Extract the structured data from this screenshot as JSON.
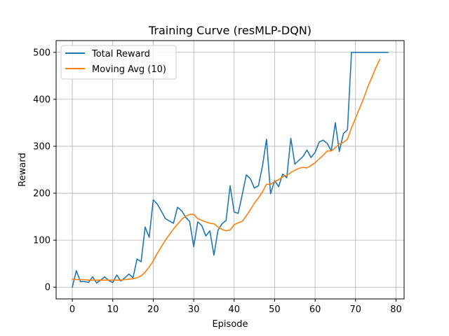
{
  "chart_data": {
    "type": "line",
    "title": "Training Curve (resMLP-DQN)",
    "xlabel": "Episode",
    "ylabel": "Reward",
    "xlim": [
      -4,
      82
    ],
    "ylim": [
      -25,
      525
    ],
    "xticks": [
      0,
      10,
      20,
      30,
      40,
      50,
      60,
      70,
      80
    ],
    "yticks": [
      0,
      100,
      200,
      300,
      400,
      500
    ],
    "grid": true,
    "legend_position": "top-left",
    "series": [
      {
        "name": "Total Reward",
        "color": "#1f77b4",
        "x": [
          0,
          1,
          2,
          3,
          4,
          5,
          6,
          7,
          8,
          9,
          10,
          11,
          12,
          13,
          14,
          15,
          16,
          17,
          18,
          19,
          20,
          21,
          22,
          23,
          24,
          25,
          26,
          27,
          28,
          29,
          30,
          31,
          32,
          33,
          34,
          35,
          36,
          37,
          38,
          39,
          40,
          41,
          42,
          43,
          44,
          45,
          46,
          47,
          48,
          49,
          50,
          51,
          52,
          53,
          54,
          55,
          56,
          57,
          58,
          59,
          60,
          61,
          62,
          63,
          64,
          65,
          66,
          67,
          68,
          69,
          70,
          71,
          72,
          73,
          74,
          75,
          76,
          77,
          78
        ],
        "y": [
          0,
          35,
          12,
          12,
          10,
          22,
          9,
          15,
          22,
          14,
          10,
          26,
          13,
          20,
          28,
          20,
          60,
          54,
          128,
          106,
          186,
          177,
          162,
          146,
          141,
          136,
          170,
          163,
          149,
          140,
          86,
          139,
          131,
          109,
          120,
          68,
          121,
          135,
          142,
          216,
          160,
          157,
          197,
          239,
          231,
          211,
          216,
          258,
          315,
          199,
          227,
          214,
          241,
          233,
          317,
          262,
          270,
          278,
          292,
          276,
          287,
          309,
          313,
          306,
          290,
          350,
          289,
          327,
          335,
          500,
          500,
          500,
          500,
          500,
          500,
          500,
          500,
          500,
          500
        ]
      },
      {
        "name": "Moving Avg (10)",
        "color": "#ff7f0e",
        "x": [
          0,
          1,
          2,
          3,
          4,
          5,
          6,
          7,
          8,
          9,
          10,
          11,
          12,
          13,
          14,
          15,
          16,
          17,
          18,
          19,
          20,
          21,
          22,
          23,
          24,
          25,
          26,
          27,
          28,
          29,
          30,
          31,
          32,
          33,
          34,
          35,
          36,
          37,
          38,
          39,
          40,
          41,
          42,
          43,
          44,
          45,
          46,
          47,
          48,
          49,
          50,
          51,
          52,
          53,
          54,
          55,
          56,
          57,
          58,
          59,
          60,
          61,
          62,
          63,
          64,
          65,
          66,
          67,
          68,
          69,
          70,
          71,
          72,
          73,
          74,
          75,
          76
        ],
        "y": [
          17,
          16,
          16,
          16,
          15,
          15,
          15,
          15,
          15,
          15,
          15,
          15,
          15,
          16,
          17,
          18,
          20,
          24,
          32,
          43,
          56,
          72,
          86,
          100,
          112,
          124,
          134,
          144,
          151,
          155,
          155,
          146,
          142,
          139,
          136,
          135,
          128,
          123,
          120,
          122,
          133,
          137,
          140,
          152,
          165,
          179,
          190,
          203,
          219,
          219,
          225,
          229,
          235,
          238,
          244,
          249,
          253,
          255,
          254,
          259,
          265,
          273,
          281,
          290,
          290,
          297,
          305,
          308,
          315,
          339,
          360,
          381,
          402,
          426,
          446,
          467,
          485
        ]
      }
    ]
  }
}
